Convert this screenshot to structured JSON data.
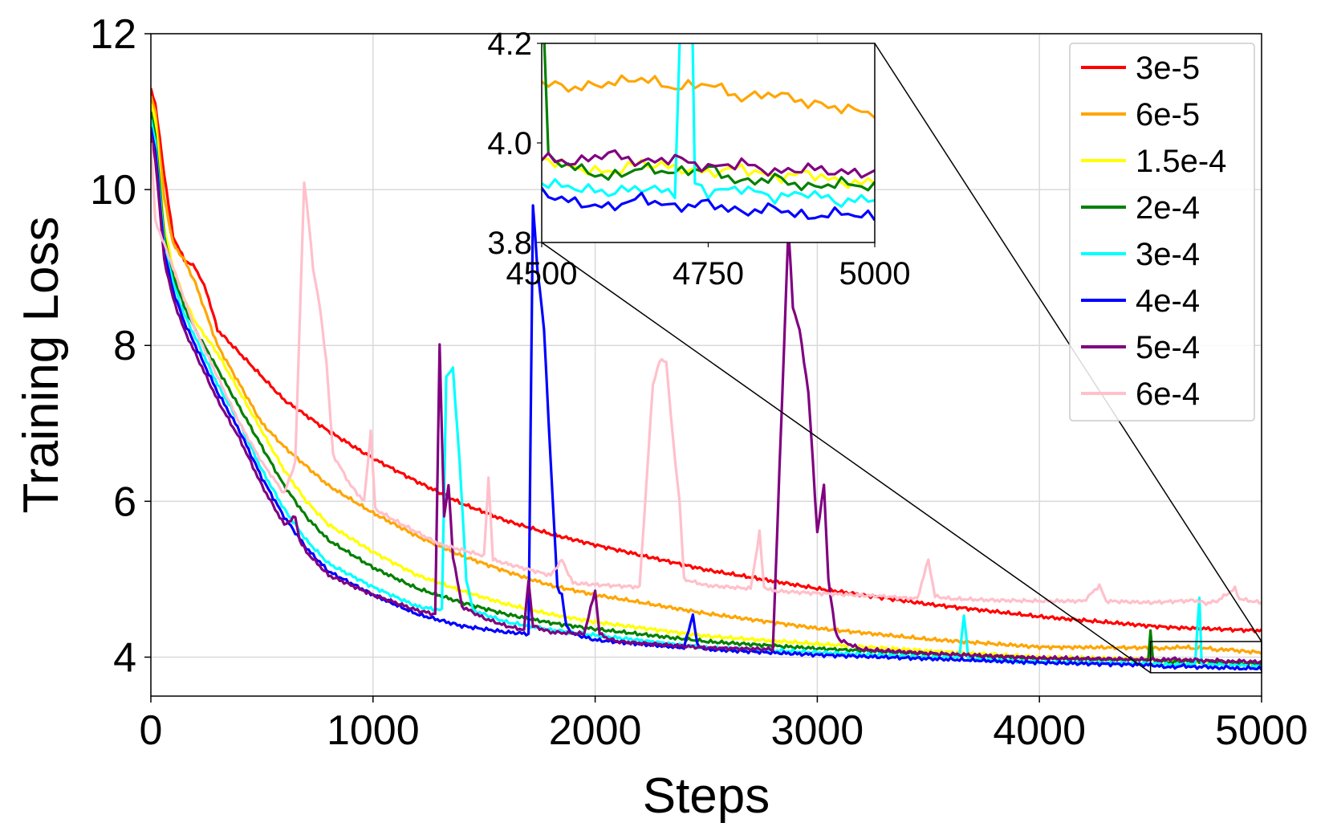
{
  "chart_data": {
    "type": "line",
    "title": "",
    "xlabel": "Steps",
    "ylabel": "Training Loss",
    "xlim": [
      0,
      5000
    ],
    "ylim": [
      3.5,
      12
    ],
    "xticks": [
      0,
      1000,
      2000,
      3000,
      4000,
      5000
    ],
    "yticks": [
      4,
      6,
      8,
      10,
      12
    ],
    "xtick_labels": [
      "0",
      "1000",
      "2000",
      "3000",
      "4000",
      "5000"
    ],
    "ytick_labels": [
      "4",
      "6",
      "8",
      "10",
      "12"
    ],
    "grid": true,
    "legend_position": "top-right",
    "inset": {
      "xlim": [
        4500,
        5000
      ],
      "ylim": [
        3.8,
        4.2
      ],
      "xticks": [
        4500,
        4750,
        5000
      ],
      "yticks": [
        3.8,
        4.0,
        4.2
      ],
      "xtick_labels": [
        "4500",
        "4750",
        "5000"
      ],
      "ytick_labels": [
        "3.8",
        "4.0",
        "4.2"
      ]
    },
    "series": [
      {
        "name": "3e-5",
        "color": "#ff0000",
        "x": [
          0,
          20,
          60,
          100,
          150,
          200,
          250,
          300,
          400,
          500,
          600,
          700,
          800,
          1000,
          1200,
          1400,
          1600,
          1800,
          2000,
          2500,
          3000,
          3500,
          4000,
          4500,
          4600,
          4700,
          4800,
          4900,
          5000
        ],
        "y": [
          11.3,
          11.1,
          10.2,
          9.4,
          9.1,
          9.0,
          8.7,
          8.2,
          7.9,
          7.6,
          7.3,
          7.1,
          6.9,
          6.55,
          6.25,
          5.97,
          5.75,
          5.58,
          5.44,
          5.12,
          4.88,
          4.68,
          4.52,
          4.4,
          4.38,
          4.37,
          4.36,
          4.35,
          4.34
        ]
      },
      {
        "name": "6e-5",
        "color": "#ffa500",
        "x": [
          0,
          20,
          60,
          100,
          150,
          200,
          250,
          300,
          400,
          500,
          600,
          800,
          1000,
          1200,
          1400,
          1600,
          1800,
          2000,
          2500,
          3000,
          3500,
          4000,
          4500,
          4550,
          4600,
          4650,
          4700,
          4750,
          4800,
          4850,
          4900,
          4950,
          5000
        ],
        "y": [
          11.2,
          11.0,
          9.9,
          9.3,
          9.1,
          8.8,
          8.4,
          8.0,
          7.5,
          7.0,
          6.7,
          6.2,
          5.85,
          5.55,
          5.3,
          5.1,
          4.92,
          4.8,
          4.56,
          4.37,
          4.23,
          4.13,
          4.12,
          4.11,
          4.12,
          4.13,
          4.11,
          4.12,
          4.09,
          4.1,
          4.08,
          4.07,
          4.06
        ]
      },
      {
        "name": "1.5e-4",
        "color": "#ffff00",
        "x": [
          0,
          20,
          60,
          100,
          150,
          200,
          300,
          400,
          500,
          600,
          700,
          800,
          1000,
          1200,
          1400,
          1600,
          1800,
          2000,
          2500,
          3000,
          3500,
          4000,
          4500,
          4550,
          4600,
          4650,
          4700,
          4750,
          4800,
          4850,
          4900,
          4950,
          5000
        ],
        "y": [
          11.1,
          10.9,
          9.5,
          9.0,
          8.6,
          8.3,
          7.9,
          7.4,
          6.9,
          6.4,
          6.0,
          5.7,
          5.35,
          5.05,
          4.85,
          4.68,
          4.55,
          4.45,
          4.27,
          4.17,
          4.08,
          4.0,
          3.97,
          3.95,
          3.94,
          3.96,
          3.95,
          3.94,
          3.95,
          3.93,
          3.94,
          3.92,
          3.92
        ]
      },
      {
        "name": "2e-4",
        "color": "#008000",
        "x": [
          0,
          20,
          60,
          100,
          150,
          200,
          300,
          400,
          500,
          600,
          700,
          800,
          1000,
          1200,
          1400,
          1600,
          1800,
          2000,
          2500,
          3000,
          3500,
          4000,
          4490,
          4500,
          4510,
          4550,
          4600,
          4650,
          4700,
          4750,
          4800,
          4850,
          4900,
          4950,
          5000
        ],
        "y": [
          11.0,
          10.7,
          9.4,
          8.9,
          8.5,
          8.2,
          7.7,
          7.2,
          6.7,
          6.2,
          5.8,
          5.5,
          5.15,
          4.88,
          4.7,
          4.55,
          4.44,
          4.36,
          4.2,
          4.11,
          4.04,
          3.98,
          3.96,
          4.35,
          3.97,
          3.95,
          3.93,
          3.95,
          3.94,
          3.95,
          3.92,
          3.93,
          3.91,
          3.92,
          3.91
        ]
      },
      {
        "name": "3e-4",
        "color": "#00ffff",
        "x": [
          0,
          20,
          60,
          100,
          150,
          200,
          300,
          400,
          500,
          600,
          700,
          800,
          1000,
          1200,
          1310,
          1330,
          1360,
          1390,
          1420,
          1450,
          1600,
          1800,
          2000,
          2500,
          3000,
          3500,
          3640,
          3660,
          3680,
          4000,
          4500,
          4550,
          4600,
          4650,
          4700,
          4720,
          4730,
          4750,
          4800,
          4850,
          4900,
          4950,
          5000
        ],
        "y": [
          10.9,
          10.6,
          9.3,
          8.8,
          8.4,
          8.1,
          7.5,
          7.0,
          6.4,
          5.9,
          5.5,
          5.2,
          4.9,
          4.65,
          4.6,
          7.6,
          7.7,
          6.5,
          5.0,
          4.6,
          4.45,
          4.35,
          4.28,
          4.12,
          4.06,
          4.0,
          4.0,
          4.55,
          3.98,
          3.94,
          3.92,
          3.91,
          3.9,
          3.91,
          3.9,
          4.75,
          3.92,
          3.9,
          3.91,
          3.89,
          3.9,
          3.88,
          3.89
        ]
      },
      {
        "name": "4e-4",
        "color": "#0000ff",
        "x": [
          0,
          20,
          60,
          100,
          150,
          200,
          300,
          400,
          500,
          600,
          700,
          800,
          1000,
          1200,
          1400,
          1600,
          1700,
          1720,
          1740,
          1770,
          1800,
          1830,
          1850,
          1870,
          1900,
          2000,
          2400,
          2440,
          2460,
          2500,
          3000,
          3500,
          4000,
          4500,
          4550,
          4600,
          4650,
          4700,
          4750,
          4800,
          4850,
          4900,
          4950,
          5000
        ],
        "y": [
          10.8,
          10.5,
          9.2,
          8.7,
          8.3,
          8.0,
          7.4,
          6.9,
          6.3,
          5.8,
          5.4,
          5.1,
          4.8,
          4.55,
          4.4,
          4.32,
          4.3,
          9.8,
          9.0,
          8.2,
          6.5,
          4.9,
          4.8,
          4.4,
          4.3,
          4.22,
          4.12,
          4.55,
          4.15,
          4.1,
          4.03,
          3.98,
          3.93,
          3.9,
          3.88,
          3.87,
          3.89,
          3.87,
          3.88,
          3.86,
          3.87,
          3.85,
          3.86,
          3.85
        ]
      },
      {
        "name": "5e-4",
        "color": "#800080",
        "x": [
          0,
          20,
          60,
          100,
          150,
          200,
          300,
          400,
          500,
          600,
          650,
          670,
          700,
          800,
          1000,
          1200,
          1280,
          1300,
          1320,
          1340,
          1360,
          1400,
          1500,
          1600,
          1680,
          1700,
          1720,
          1800,
          1950,
          2000,
          2020,
          2050,
          2100,
          2500,
          2800,
          2870,
          2890,
          2920,
          2960,
          3000,
          3030,
          3050,
          3080,
          3100,
          3200,
          3500,
          4000,
          4500,
          4550,
          4600,
          4650,
          4700,
          4750,
          4800,
          4850,
          4900,
          4950,
          5000
        ],
        "y": [
          10.7,
          10.4,
          9.1,
          8.6,
          8.2,
          7.9,
          7.3,
          6.8,
          6.2,
          5.7,
          5.8,
          5.5,
          5.35,
          5.05,
          4.8,
          4.6,
          4.55,
          8.0,
          5.8,
          6.2,
          5.3,
          4.65,
          4.5,
          4.4,
          4.35,
          5.0,
          4.4,
          4.32,
          4.3,
          4.85,
          4.3,
          4.25,
          4.2,
          4.12,
          4.1,
          9.5,
          8.5,
          8.2,
          7.4,
          5.6,
          6.2,
          5.0,
          4.35,
          4.22,
          4.1,
          4.05,
          3.99,
          3.97,
          3.96,
          3.98,
          3.96,
          3.97,
          3.95,
          3.96,
          3.94,
          3.95,
          3.94,
          3.94
        ]
      },
      {
        "name": "6e-4",
        "color": "#ffc0cb",
        "x": [
          0,
          20,
          60,
          100,
          150,
          200,
          300,
          400,
          500,
          600,
          650,
          690,
          710,
          730,
          760,
          790,
          820,
          900,
          960,
          990,
          1010,
          1100,
          1300,
          1500,
          1520,
          1540,
          1600,
          1800,
          1850,
          1900,
          2000,
          2200,
          2260,
          2290,
          2320,
          2350,
          2380,
          2400,
          2500,
          2700,
          2740,
          2760,
          2800,
          3000,
          3300,
          3450,
          3500,
          3530,
          3600,
          3800,
          4000,
          4200,
          4270,
          4300,
          4500,
          4700,
          4750,
          4800,
          4880,
          4900,
          4950,
          5000
        ],
        "y": [
          10.6,
          9.6,
          9.3,
          9.0,
          8.6,
          8.2,
          7.6,
          7.0,
          6.5,
          6.1,
          6.5,
          10.1,
          9.6,
          9.0,
          8.5,
          7.8,
          6.6,
          6.2,
          6.0,
          6.9,
          5.9,
          5.75,
          5.45,
          5.3,
          6.3,
          5.25,
          5.2,
          5.05,
          5.25,
          4.95,
          4.93,
          4.9,
          7.5,
          7.8,
          7.8,
          6.8,
          6.0,
          5.0,
          4.92,
          4.88,
          5.6,
          4.9,
          4.85,
          4.82,
          4.78,
          4.75,
          5.25,
          4.78,
          4.75,
          4.73,
          4.72,
          4.72,
          4.92,
          4.72,
          4.7,
          4.73,
          4.69,
          4.72,
          4.88,
          4.75,
          4.72,
          4.7
        ]
      }
    ]
  }
}
